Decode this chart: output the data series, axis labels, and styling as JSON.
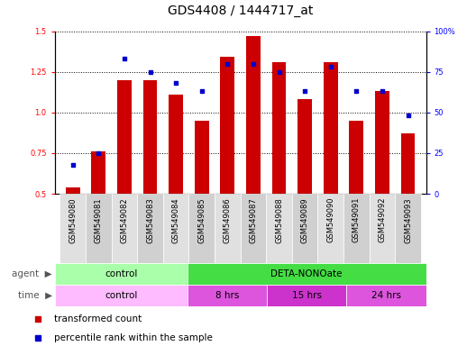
{
  "title": "GDS4408 / 1444717_at",
  "samples": [
    "GSM549080",
    "GSM549081",
    "GSM549082",
    "GSM549083",
    "GSM549084",
    "GSM549085",
    "GSM549086",
    "GSM549087",
    "GSM549088",
    "GSM549089",
    "GSM549090",
    "GSM549091",
    "GSM549092",
    "GSM549093"
  ],
  "transformed_count": [
    0.54,
    0.76,
    1.2,
    1.2,
    1.11,
    0.95,
    1.34,
    1.47,
    1.31,
    1.08,
    1.31,
    0.95,
    1.13,
    0.87
  ],
  "percentile_rank": [
    18,
    25,
    83,
    75,
    68,
    63,
    80,
    80,
    75,
    63,
    78,
    63,
    63,
    48
  ],
  "ylim_left": [
    0.5,
    1.5
  ],
  "ylim_right": [
    0,
    100
  ],
  "yticks_left": [
    0.5,
    0.75,
    1.0,
    1.25,
    1.5
  ],
  "yticks_right": [
    0,
    25,
    50,
    75,
    100
  ],
  "bar_color": "#cc0000",
  "dot_color": "#0000cc",
  "bar_width": 0.55,
  "agent_groups": [
    {
      "label": "control",
      "start": 0,
      "end": 5,
      "color": "#aaffaa"
    },
    {
      "label": "DETA-NONOate",
      "start": 5,
      "end": 14,
      "color": "#44dd44"
    }
  ],
  "time_groups": [
    {
      "label": "control",
      "start": 0,
      "end": 5,
      "color": "#ffbbff"
    },
    {
      "label": "8 hrs",
      "start": 5,
      "end": 8,
      "color": "#dd55dd"
    },
    {
      "label": "15 hrs",
      "start": 8,
      "end": 11,
      "color": "#cc33cc"
    },
    {
      "label": "24 hrs",
      "start": 11,
      "end": 14,
      "color": "#dd55dd"
    }
  ],
  "legend_items": [
    {
      "label": "transformed count",
      "color": "#cc0000"
    },
    {
      "label": "percentile rank within the sample",
      "color": "#0000cc"
    }
  ],
  "title_fontsize": 10,
  "tick_fontsize": 6,
  "bar_label_fontsize": 6,
  "annotation_fontsize": 7.5,
  "legend_fontsize": 7.5
}
